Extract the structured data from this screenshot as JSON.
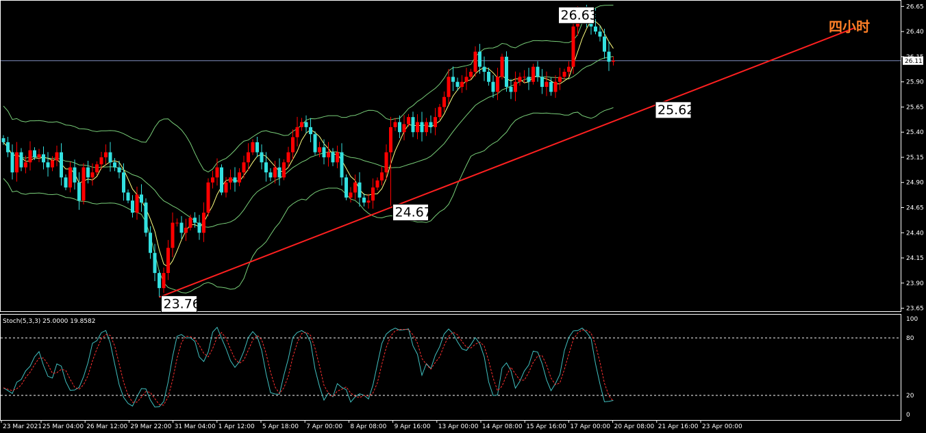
{
  "chart_data": {
    "type": "candlestick",
    "indicator_label": "Stoch(5,3,3) 25.0000 19.8582",
    "period_label": "四小时",
    "colors": {
      "up": "#ff0000",
      "down": "#33e0e0",
      "bollinger": "#7ad07a",
      "ma": "#ffff80",
      "trendline": "#ff2020",
      "stoch_main": "#40c0c0",
      "stoch_signal": "#ff3030",
      "price_line": "#8090c0"
    },
    "price_axis": {
      "ticks": [
        "26.65",
        "26.40",
        "26.15",
        "25.90",
        "25.65",
        "25.40",
        "25.15",
        "24.90",
        "24.65",
        "24.40",
        "24.15",
        "23.90",
        "23.65"
      ],
      "range": [
        23.62,
        26.7
      ]
    },
    "current_price": "26.11",
    "stoch_axis": {
      "ticks": [
        "100",
        "80",
        "20",
        "0"
      ],
      "levels": [
        80,
        20
      ]
    },
    "x_labels": [
      "23 Mar 2021",
      "25 Mar 04:00",
      "26 Mar 12:00",
      "29 Mar 22:00",
      "31 Mar 04:00",
      "1 Apr 12:00",
      "5 Apr 18:00",
      "7 Apr 00:00",
      "8 Apr 08:00",
      "9 Apr 16:00",
      "13 Apr 00:00",
      "14 Apr 08:00",
      "15 Apr 16:00",
      "17 Apr 00:00",
      "20 Apr 08:00",
      "21 Apr 16:00",
      "23 Apr 00:00"
    ],
    "annotations": [
      {
        "label": "26.63",
        "value": 26.63,
        "index": 133,
        "kind": "high"
      },
      {
        "label": "23.76",
        "value": 23.76,
        "index": 35,
        "kind": "low"
      },
      {
        "label": "24.67",
        "value": 24.67,
        "index": 87,
        "kind": "low"
      },
      {
        "label": "25.62",
        "value": 25.62,
        "index": 146,
        "kind": "trendline"
      }
    ],
    "trendline": {
      "start": {
        "index": 35,
        "value": 23.76
      },
      "end": {
        "index": 178,
        "value": 26.21
      }
    },
    "closes": [
      25.3,
      25.2,
      25.0,
      25.2,
      25.05,
      25.1,
      25.22,
      25.15,
      25.18,
      25.1,
      25.05,
      25.12,
      25.2,
      24.95,
      24.85,
      25.05,
      24.9,
      24.72,
      25.05,
      24.95,
      25.0,
      25.08,
      25.15,
      25.2,
      25.1,
      25.05,
      25.0,
      24.8,
      24.72,
      24.6,
      24.78,
      24.7,
      24.4,
      24.2,
      24.0,
      23.85,
      24.0,
      24.25,
      24.5,
      24.5,
      24.4,
      24.45,
      24.55,
      24.5,
      24.4,
      24.6,
      24.9,
      24.95,
      25.05,
      24.8,
      24.9,
      24.95,
      24.9,
      25.0,
      25.1,
      25.2,
      25.3,
      25.2,
      25.1,
      25.0,
      24.95,
      25.05,
      24.95,
      25.1,
      25.2,
      25.35,
      25.45,
      25.5,
      25.45,
      25.38,
      25.2,
      25.25,
      25.15,
      25.2,
      25.1,
      25.2,
      24.95,
      24.75,
      24.8,
      24.9,
      24.75,
      24.7,
      24.72,
      24.85,
      24.92,
      25.0,
      25.2,
      25.45,
      25.5,
      25.4,
      25.48,
      25.55,
      25.4,
      25.5,
      25.4,
      25.5,
      25.45,
      25.55,
      25.65,
      25.75,
      25.95,
      25.9,
      25.85,
      25.9,
      25.95,
      26.0,
      26.2,
      26.05,
      26.0,
      25.9,
      25.8,
      25.95,
      26.15,
      25.85,
      25.8,
      25.9,
      25.95,
      25.95,
      25.9,
      26.05,
      25.95,
      25.85,
      25.9,
      25.8,
      25.9,
      25.95,
      26.0,
      26.05,
      26.45,
      26.55,
      26.6,
      26.5,
      26.45,
      26.4,
      26.35,
      26.2,
      26.1,
      26.11
    ]
  }
}
